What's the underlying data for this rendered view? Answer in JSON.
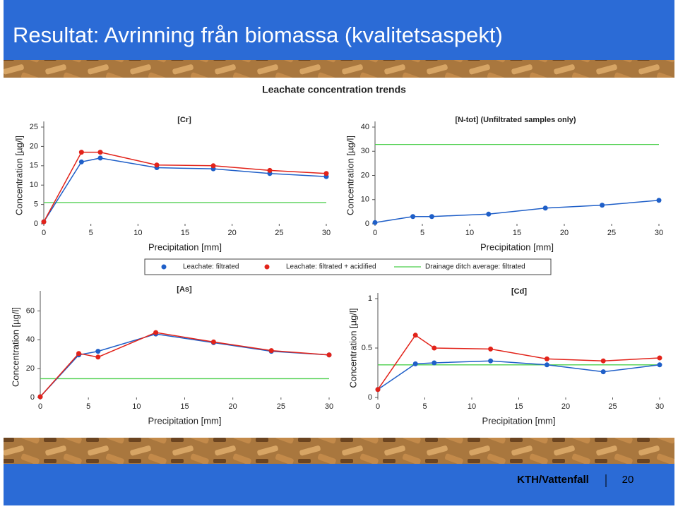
{
  "slide": {
    "title": "Resultat: Avrinning från biomassa (kvalitetsaspekt)",
    "figure_title": "Leachate concentration trends",
    "footer": "KTH/Vattenfall",
    "page": "20"
  },
  "chart_data": [
    {
      "type": "line",
      "subtitle": "[Cr]",
      "xlabel": "Precipitation [mm]",
      "ylabel": "Concentration [µg/l]",
      "x": [
        0,
        4,
        6,
        12,
        18,
        24,
        30
      ],
      "series": [
        {
          "name": "Leachate: filtrated",
          "color": "#1f5fc8",
          "values": [
            0.5,
            16,
            17,
            14.5,
            14.2,
            13,
            12.2
          ]
        },
        {
          "name": "Leachate: filtrated + acidified",
          "color": "#e2231a",
          "values": [
            0.5,
            18.5,
            18.5,
            15.2,
            15,
            13.8,
            13
          ]
        }
      ],
      "reference": {
        "name": "Drainage ditch average: filtrated",
        "color": "#4ccf4c",
        "value": 5.5
      },
      "xlim": [
        0,
        30
      ],
      "ylim": [
        0,
        25
      ],
      "xticks": [
        0,
        5,
        10,
        15,
        20,
        25,
        30
      ],
      "yticks": [
        0,
        5,
        10,
        15,
        20,
        25
      ]
    },
    {
      "type": "line",
      "subtitle": "[N-tot] (Unfiltrated samples only)",
      "xlabel": "Precipitation [mm]",
      "ylabel": "Concentration [µg/l]",
      "x": [
        0,
        4,
        6,
        12,
        18,
        24,
        30
      ],
      "series": [
        {
          "name": "Leachate: filtrated",
          "color": "#1f5fc8",
          "values": [
            0.5,
            3,
            3,
            4,
            6.5,
            7.7,
            9.7
          ]
        }
      ],
      "reference": {
        "name": "Drainage ditch average: filtrated",
        "color": "#4ccf4c",
        "value": 32.8
      },
      "xlim": [
        0,
        30
      ],
      "ylim": [
        0,
        40
      ],
      "xticks": [
        0,
        5,
        10,
        15,
        20,
        25,
        30
      ],
      "yticks": [
        0,
        10,
        20,
        30,
        40
      ]
    },
    {
      "type": "line",
      "subtitle": "[As]",
      "xlabel": "Precipitation [mm]",
      "ylabel": "Concentration [µg/l]",
      "x": [
        0,
        4,
        6,
        12,
        18,
        24,
        30
      ],
      "series": [
        {
          "name": "Leachate: filtrated",
          "color": "#1f5fc8",
          "values": [
            0.5,
            29.5,
            32,
            44,
            38,
            32,
            29.5
          ]
        },
        {
          "name": "Leachate: filtrated + acidified",
          "color": "#e2231a",
          "values": [
            0.5,
            30.5,
            28,
            45,
            38.5,
            32.5,
            29.5
          ]
        }
      ],
      "reference": {
        "name": "Drainage ditch average: filtrated",
        "color": "#4ccf4c",
        "value": 13
      },
      "xlim": [
        0,
        30
      ],
      "ylim": [
        0,
        70
      ],
      "xticks": [
        0,
        5,
        10,
        15,
        20,
        25,
        30
      ],
      "yticks": [
        0,
        20,
        40,
        60
      ]
    },
    {
      "type": "line",
      "subtitle": "[Cd]",
      "xlabel": "Precipitation [mm]",
      "ylabel": "Concentration [µg/l]",
      "x": [
        0,
        4,
        6,
        12,
        18,
        24,
        30
      ],
      "series": [
        {
          "name": "Leachate: filtrated",
          "color": "#1f5fc8",
          "values": [
            0.08,
            0.34,
            0.35,
            0.37,
            0.33,
            0.26,
            0.33
          ]
        },
        {
          "name": "Leachate: filtrated + acidified",
          "color": "#e2231a",
          "values": [
            0.08,
            0.63,
            0.5,
            0.49,
            0.39,
            0.37,
            0.4
          ]
        }
      ],
      "reference": {
        "name": "Drainage ditch average: filtrated",
        "color": "#4ccf4c",
        "value": 0.33
      },
      "xlim": [
        0,
        30
      ],
      "ylim": [
        0,
        1
      ],
      "xticks": [
        0,
        5,
        10,
        15,
        20,
        25,
        30
      ],
      "yticks": [
        0,
        0.5,
        1
      ]
    }
  ]
}
